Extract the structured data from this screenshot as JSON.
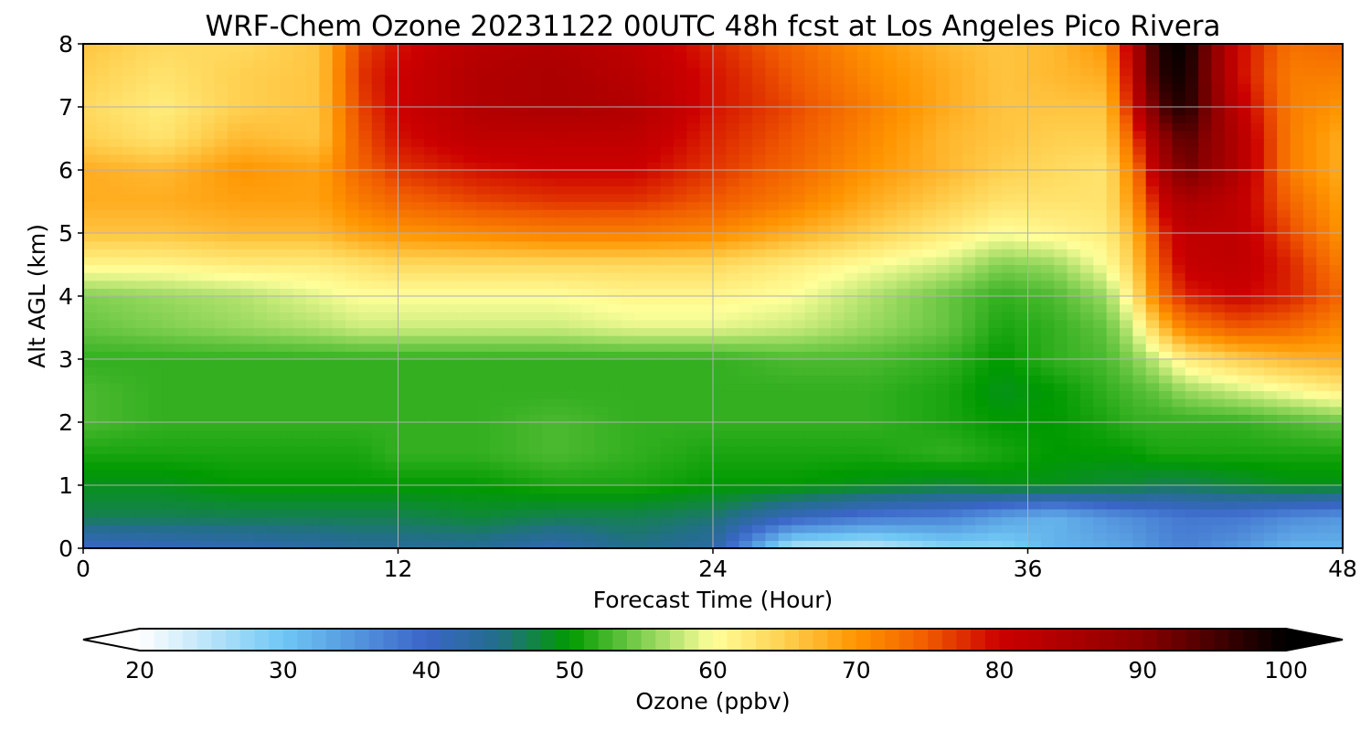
{
  "chart_data": {
    "type": "heatmap",
    "title": "WRF-Chem Ozone  20231122 00UTC 48h fcst at Los Angeles Pico Rivera",
    "xlabel": "Forecast Time (Hour)",
    "ylabel": "Alt AGL (km)",
    "xlim": [
      0,
      48
    ],
    "ylim": [
      0,
      8
    ],
    "grid": true,
    "x_ticks": [
      0,
      12,
      24,
      36,
      48
    ],
    "y_ticks": [
      0,
      1,
      2,
      3,
      4,
      5,
      6,
      7,
      8
    ],
    "x": [
      0,
      3,
      6,
      9,
      10.5,
      12,
      15,
      18,
      21,
      24,
      27,
      30,
      33,
      35,
      37,
      39,
      40,
      41,
      42,
      44,
      46,
      48
    ],
    "y": [
      0,
      0.5,
      1,
      1.5,
      2,
      2.5,
      3,
      3.5,
      4,
      4.5,
      5,
      5.5,
      6,
      6.5,
      7,
      7.5,
      8
    ],
    "z": [
      [
        40,
        41,
        42,
        43,
        44,
        44,
        44,
        42,
        45,
        43,
        25,
        24,
        28,
        28,
        32,
        33,
        34,
        36,
        37,
        35,
        32,
        32
      ],
      [
        47,
        47,
        47,
        47,
        47,
        47,
        48,
        47,
        47,
        46,
        41,
        38,
        37,
        34,
        32,
        35,
        36,
        37,
        38,
        38,
        36,
        35
      ],
      [
        49,
        49,
        50,
        50,
        50,
        50,
        50,
        51,
        51,
        50,
        50,
        49,
        48,
        49,
        49,
        48,
        48,
        47,
        47,
        48,
        49,
        49
      ],
      [
        51,
        51,
        51,
        51,
        51,
        52,
        52,
        53,
        52,
        51,
        51,
        51,
        52,
        51,
        50,
        50,
        50,
        51,
        51,
        51,
        51,
        51
      ],
      [
        53,
        52,
        52,
        52,
        52,
        52,
        52,
        53,
        52,
        52,
        52,
        52,
        51,
        50,
        50,
        51,
        52,
        52,
        52,
        52,
        53,
        54
      ],
      [
        53,
        52,
        52,
        52,
        52,
        52,
        52,
        52,
        52,
        52,
        52,
        52,
        51,
        49,
        50,
        52,
        53,
        54,
        56,
        58,
        60,
        62
      ],
      [
        52,
        52,
        52,
        52,
        52,
        52,
        52,
        52,
        52,
        52,
        53,
        53,
        52,
        50,
        52,
        53,
        55,
        58,
        62,
        65,
        67,
        68
      ],
      [
        54,
        55,
        56,
        57,
        58,
        58,
        58,
        58,
        59,
        59,
        58,
        56,
        54,
        51,
        52,
        54,
        58,
        66,
        72,
        75,
        74,
        71
      ],
      [
        55,
        56,
        57,
        59,
        60,
        60,
        60,
        60,
        61,
        61,
        60,
        57,
        54,
        52,
        53,
        56,
        62,
        73,
        78,
        80,
        78,
        74
      ],
      [
        61,
        61,
        62,
        62,
        63,
        64,
        64,
        64,
        64,
        64,
        62,
        60,
        58,
        55,
        56,
        60,
        65,
        75,
        81,
        82,
        78,
        72
      ],
      [
        66,
        66,
        67,
        67,
        69,
        70,
        71,
        72,
        72,
        71,
        68,
        65,
        62,
        60,
        61,
        62,
        67,
        77,
        82,
        82,
        76,
        70
      ],
      [
        68,
        68,
        69,
        69,
        72,
        74,
        76,
        77,
        77,
        75,
        72,
        68,
        65,
        63,
        63,
        63,
        70,
        80,
        85,
        82,
        74,
        69
      ],
      [
        68,
        67,
        70,
        69,
        74,
        77,
        79,
        80,
        80,
        77,
        74,
        70,
        67,
        65,
        64,
        63,
        72,
        84,
        92,
        84,
        72,
        68
      ],
      [
        65,
        63,
        67,
        66,
        75,
        79,
        82,
        82,
        82,
        78,
        75,
        71,
        67,
        66,
        65,
        65,
        75,
        88,
        94,
        84,
        72,
        68
      ],
      [
        64,
        62,
        65,
        66,
        76,
        80,
        84,
        85,
        84,
        79,
        76,
        72,
        68,
        66,
        66,
        66,
        80,
        94,
        98,
        82,
        72,
        70
      ],
      [
        65,
        63,
        65,
        66,
        77,
        80,
        84,
        85,
        83,
        79,
        75,
        71,
        68,
        66,
        67,
        68,
        82,
        97,
        99,
        80,
        72,
        72
      ],
      [
        66,
        64,
        64,
        66,
        76,
        79,
        83,
        84,
        82,
        78,
        74,
        70,
        67,
        66,
        67,
        70,
        83,
        98,
        100,
        80,
        73,
        74
      ]
    ],
    "colorbar": {
      "label": "Ozone  (ppbv)",
      "min": 20,
      "max": 100,
      "ticks": [
        20,
        30,
        40,
        50,
        60,
        70,
        80,
        90,
        100
      ],
      "extend": "both",
      "stops": [
        {
          "v": 20,
          "c": "#ffffff"
        },
        {
          "v": 30,
          "c": "#6fc7f4"
        },
        {
          "v": 40,
          "c": "#3a65c8"
        },
        {
          "v": 45,
          "c": "#236e8a"
        },
        {
          "v": 50,
          "c": "#009a00"
        },
        {
          "v": 55,
          "c": "#7fcf50"
        },
        {
          "v": 60,
          "c": "#ffff9a"
        },
        {
          "v": 65,
          "c": "#ffd050"
        },
        {
          "v": 70,
          "c": "#ff9500"
        },
        {
          "v": 75,
          "c": "#f05a00"
        },
        {
          "v": 80,
          "c": "#cc0000"
        },
        {
          "v": 90,
          "c": "#8a0000"
        },
        {
          "v": 100,
          "c": "#000000"
        }
      ]
    }
  }
}
